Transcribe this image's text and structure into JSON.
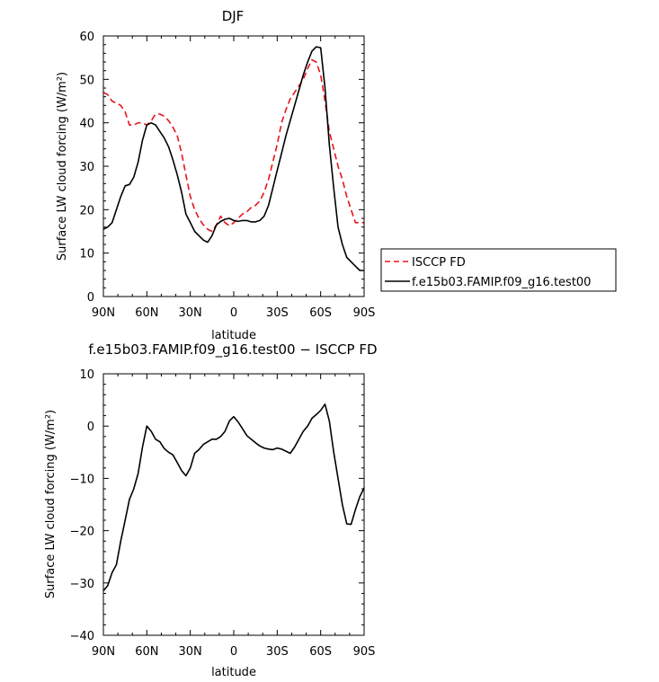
{
  "chart_data": [
    {
      "type": "line",
      "title": "DJF",
      "xlabel": "latitude",
      "ylabel": "Surface LW cloud forcing (W/m²)",
      "x_ticks": [
        -90,
        -60,
        -30,
        0,
        30,
        60,
        90
      ],
      "x_tick_labels": [
        "90N",
        "60N",
        "30N",
        "0",
        "30S",
        "60S",
        "90S"
      ],
      "xlim": [
        -90,
        90
      ],
      "ylim": [
        0,
        60
      ],
      "y_ticks": [
        0,
        10,
        20,
        30,
        40,
        50,
        60
      ],
      "legend_position": "right",
      "series": [
        {
          "name": "ISCCP FD",
          "color": "#e8131b",
          "dash": "dashed",
          "x": [
            -90,
            -87,
            -84,
            -81,
            -78,
            -75,
            -72,
            -69,
            -66,
            -63,
            -60,
            -57,
            -54,
            -51,
            -48,
            -45,
            -42,
            -39,
            -36,
            -33,
            -30,
            -27,
            -24,
            -21,
            -18,
            -15,
            -12,
            -9,
            -6,
            -3,
            0,
            3,
            6,
            9,
            12,
            15,
            18,
            21,
            24,
            27,
            30,
            33,
            36,
            39,
            42,
            45,
            48,
            51,
            54,
            57,
            60,
            63,
            66,
            69,
            72,
            75,
            78,
            81,
            84,
            87,
            90
          ],
          "y": [
            47,
            46.5,
            45,
            44.5,
            44,
            42.5,
            39.5,
            39.5,
            40,
            40,
            39.5,
            40.5,
            42,
            42,
            41.5,
            40.5,
            39,
            37,
            33,
            28,
            23,
            20,
            18,
            16.5,
            15.5,
            15,
            16.5,
            18.5,
            17,
            16.3,
            17,
            18,
            19,
            19.5,
            20.5,
            21,
            22,
            24,
            27,
            31,
            35,
            40,
            43,
            45.5,
            47,
            48.5,
            50,
            52.5,
            54.5,
            54,
            51,
            45,
            38,
            34,
            30,
            27,
            23,
            20,
            17,
            17,
            17
          ]
        },
        {
          "name": "f.e15b03.FAMIP.f09_g16.test00",
          "color": "#000000",
          "dash": "solid",
          "x": [
            -90,
            -87,
            -84,
            -81,
            -78,
            -75,
            -72,
            -69,
            -66,
            -63,
            -60,
            -57,
            -54,
            -51,
            -48,
            -45,
            -42,
            -39,
            -36,
            -33,
            -30,
            -27,
            -24,
            -21,
            -18,
            -15,
            -12,
            -9,
            -6,
            -3,
            0,
            3,
            6,
            9,
            12,
            15,
            18,
            21,
            24,
            27,
            30,
            33,
            36,
            39,
            42,
            45,
            48,
            51,
            54,
            57,
            60,
            63,
            66,
            69,
            72,
            75,
            78,
            81,
            84,
            87,
            90
          ],
          "y": [
            15.5,
            16,
            17,
            20,
            23,
            25.5,
            25.8,
            27.5,
            31,
            36,
            39.5,
            40,
            39.5,
            38,
            36.5,
            34.5,
            31.5,
            28,
            24,
            19,
            17,
            15,
            14,
            13,
            12.5,
            14,
            16.5,
            17.3,
            17.8,
            18,
            17.5,
            17.3,
            17.5,
            17.5,
            17.2,
            17.2,
            17.5,
            18.5,
            21,
            25,
            29,
            33,
            37,
            40.5,
            44,
            47.5,
            51,
            54,
            56.5,
            57.5,
            57.3,
            48,
            35,
            25,
            16,
            12,
            9,
            8,
            7,
            6,
            6
          ]
        }
      ]
    },
    {
      "type": "line",
      "title": "f.e15b03.FAMIP.f09_g16.test00 − ISCCP FD",
      "xlabel": "latitude",
      "ylabel": "Surface LW cloud forcing (W/m²)",
      "x_ticks": [
        -90,
        -60,
        -30,
        0,
        30,
        60,
        90
      ],
      "x_tick_labels": [
        "90N",
        "60N",
        "30N",
        "0",
        "30S",
        "60S",
        "90S"
      ],
      "xlim": [
        -90,
        90
      ],
      "ylim": [
        -40,
        10
      ],
      "y_ticks": [
        -40,
        -30,
        -20,
        -10,
        0,
        10
      ],
      "series": [
        {
          "color": "#000000",
          "dash": "solid",
          "x": [
            -90,
            -87,
            -84,
            -81,
            -78,
            -75,
            -72,
            -69,
            -66,
            -63,
            -60,
            -57,
            -54,
            -51,
            -48,
            -45,
            -42,
            -39,
            -36,
            -33,
            -30,
            -27,
            -24,
            -21,
            -18,
            -15,
            -12,
            -9,
            -6,
            -3,
            0,
            3,
            6,
            9,
            12,
            15,
            18,
            21,
            24,
            27,
            30,
            33,
            36,
            39,
            42,
            45,
            48,
            51,
            54,
            57,
            60,
            63,
            66,
            69,
            72,
            75,
            78,
            81,
            84,
            87,
            90
          ],
          "y": [
            -31.5,
            -30.5,
            -28,
            -26.5,
            -22,
            -18,
            -14,
            -12,
            -9,
            -4,
            0,
            -1,
            -2.5,
            -3,
            -4.3,
            -5,
            -5.5,
            -7,
            -8.5,
            -9.5,
            -8,
            -5.2,
            -4.5,
            -3.5,
            -3,
            -2.5,
            -2.5,
            -2,
            -1,
            1,
            1.8,
            0.8,
            -0.5,
            -1.8,
            -2.5,
            -3.2,
            -3.8,
            -4.2,
            -4.4,
            -4.5,
            -4.2,
            -4.4,
            -4.8,
            -5.2,
            -4,
            -2.5,
            -1,
            0,
            1.5,
            2.2,
            3,
            4.2,
            1,
            -5,
            -10,
            -15,
            -18.7,
            -18.8,
            -16,
            -13.5,
            -11.8
          ]
        }
      ]
    }
  ]
}
